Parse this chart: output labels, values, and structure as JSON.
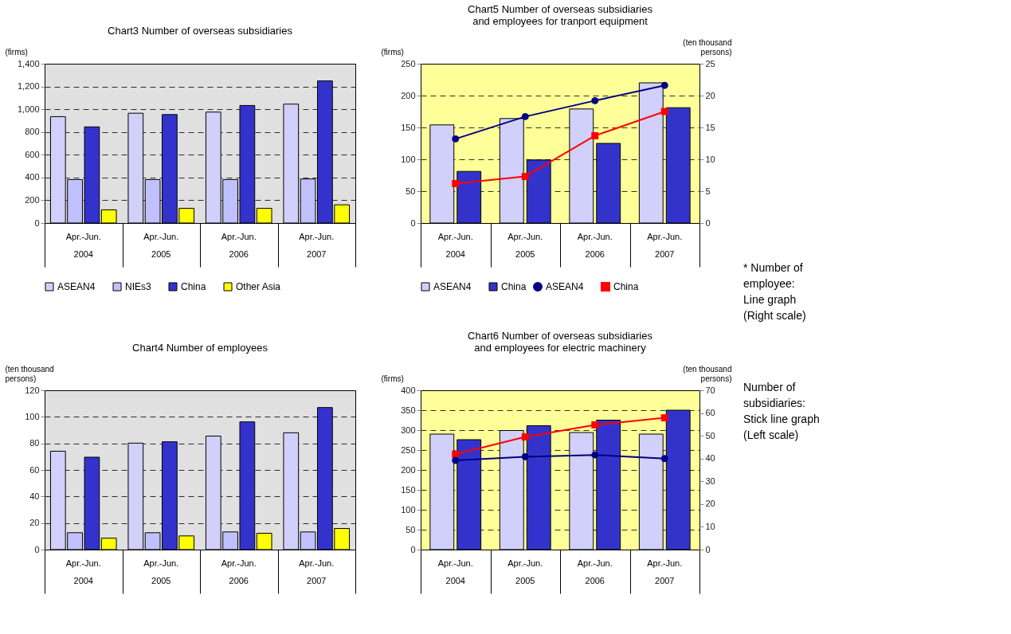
{
  "chart_data": [
    {
      "type": "bar",
      "title": "Chart3  Number of overseas subsidiaries",
      "ylabel": "(firms)",
      "categories": [
        "Apr.-Jun.\n2004",
        "Apr.-Jun.\n2005",
        "Apr.-Jun.\n2006",
        "Apr.-Jun.\n2007"
      ],
      "series": [
        {
          "name": "ASEAN4",
          "color": "#d0d0fa",
          "values": [
            935,
            965,
            975,
            1045
          ]
        },
        {
          "name": "NIEs3",
          "color": "#c0c0ff",
          "values": [
            382,
            382,
            382,
            387
          ]
        },
        {
          "name": "China",
          "color": "#3333cc",
          "values": [
            845,
            953,
            1033,
            1249
          ]
        },
        {
          "name": "Other Asia",
          "color": "#ffff00",
          "values": [
            116,
            129,
            129,
            160
          ]
        }
      ],
      "ylim": [
        0,
        1400
      ],
      "yticks": [
        0,
        {
          "value": 200,
          "label": "200"
        },
        {
          "value": 400,
          "label": "400"
        },
        {
          "value": 600,
          "label": "600"
        },
        {
          "value": 800,
          "label": "800"
        },
        {
          "value": 1000,
          "label": "1,000"
        },
        {
          "value": 1200,
          "label": "1,200"
        },
        {
          "value": 1400,
          "label": "1,400"
        }
      ],
      "grid": "y",
      "legend": "bottom"
    },
    {
      "type": "bar",
      "title": "Chart5  Number of overseas subsidiaries\nand employees for tranport equipment",
      "ylabel": "(firms)",
      "y2label": "(ten thousand\npersons)",
      "categories": [
        "Apr.-Jun.\n2004",
        "Apr.-Jun.\n2005",
        "Apr.-Jun.\n2006",
        "Apr.-Jun.\n2007"
      ],
      "series": [
        {
          "name": "ASEAN4",
          "color": "#d0d0fa",
          "values": [
            154,
            164,
            179,
            220
          ]
        },
        {
          "name": "China",
          "color": "#3333cc",
          "values": [
            81,
            99,
            125,
            181
          ]
        },
        {
          "type": "line",
          "axis": "y2",
          "marker": "circle",
          "name": "ASEAN4",
          "color": "#000080",
          "values": [
            13.2,
            16.7,
            19.2,
            21.6
          ]
        },
        {
          "type": "line",
          "axis": "y2",
          "marker": "square",
          "name": "China",
          "color": "#ff0000",
          "values": [
            6.2,
            7.3,
            13.7,
            17.5
          ]
        }
      ],
      "ylim": [
        0,
        250
      ],
      "yticks": [
        0,
        50,
        100,
        150,
        200,
        250
      ],
      "y2lim": [
        0,
        25
      ],
      "y2ticks": [
        0,
        5,
        10,
        15,
        20,
        25
      ],
      "grid": "y",
      "legend": "bottom",
      "line_style": "solid",
      "annotations": [
        "* Number of\n   employee:\n                       Line graph\n                     (Right scale)"
      ]
    },
    {
      "type": "bar",
      "title": "Chart4 Number of employees",
      "ylabel": "(ten thousand\npersons)",
      "categories": [
        "Apr.-Jun.\n2004",
        "Apr.-Jun.\n2005",
        "Apr.-Jun.\n2006",
        "Apr.-Jun.\n2007"
      ],
      "series": [
        {
          "color": "#d0d0fa",
          "values": [
            74.1,
            80.2,
            85.5,
            88.0
          ]
        },
        {
          "color": "#c0c0ff",
          "values": [
            12.7,
            12.7,
            13.3,
            13.3
          ]
        },
        {
          "color": "#3333cc",
          "values": [
            69.6,
            81.2,
            96.2,
            107.0
          ]
        },
        {
          "color": "#ffff00",
          "values": [
            8.6,
            10.3,
            12.3,
            15.9
          ]
        }
      ],
      "ylim": [
        0,
        120
      ],
      "yticks": [
        0,
        20,
        40,
        60,
        80,
        100,
        120
      ],
      "grid": "y"
    },
    {
      "type": "bar",
      "title": "Chart6  Number of overseas subsidiaries\nand employees for electric machinery",
      "ylabel": "(firms)",
      "y2label": "(ten thousand\npersons)",
      "categories": [
        "Apr.-Jun.\n2004",
        "Apr.-Jun.\n2005",
        "Apr.-Jun.\n2006",
        "Apr.-Jun.\n2007"
      ],
      "series": [
        {
          "color": "#d0d0fa",
          "values": [
            290,
            299,
            294,
            290
          ]
        },
        {
          "color": "#3333cc",
          "values": [
            276,
            311,
            325,
            350
          ]
        },
        {
          "type": "line",
          "axis": "y2",
          "marker": "square",
          "color": "#ff0000",
          "values": [
            41.9,
            49.5,
            54.8,
            57.9
          ]
        },
        {
          "type": "line",
          "axis": "y2",
          "marker": "circle",
          "color": "#000080",
          "values": [
            39.2,
            40.8,
            41.6,
            40.0
          ]
        }
      ],
      "ylim": [
        0,
        400
      ],
      "yticks": [
        0,
        50,
        100,
        150,
        200,
        250,
        300,
        350,
        400
      ],
      "y2lim": [
        0,
        70
      ],
      "y2ticks": [
        0,
        10,
        20,
        30,
        40,
        50,
        60,
        70
      ],
      "grid": "y",
      "line_style": "solid",
      "annotations": [
        "Number of\n  subsidiaries:\n          Stick line graph\n                 (Left scale)"
      ]
    }
  ]
}
